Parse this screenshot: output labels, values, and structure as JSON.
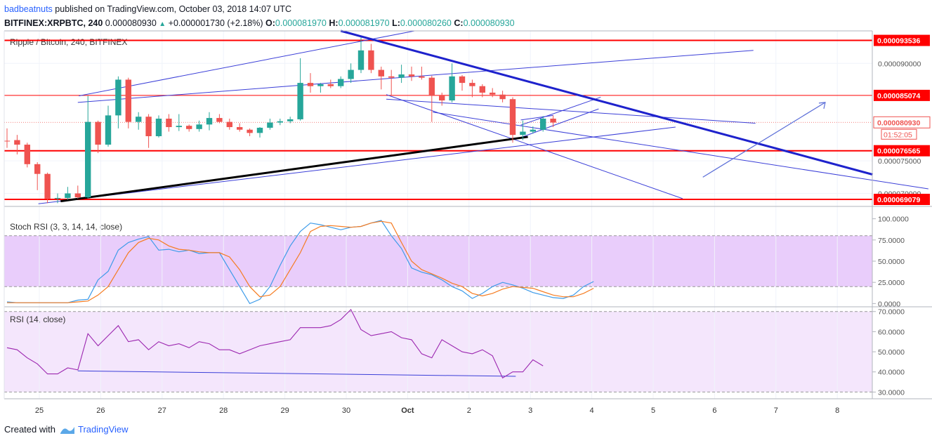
{
  "header": {
    "author": "badbeatnuts",
    "published_text": "published on TradingView.com, October 03, 2018 14:07 UTC",
    "symbol": "BITFINEX:XRPBTC, 240",
    "last": "0.000080930",
    "change": "+0.000001730 (+2.18%)",
    "o_label": "O:",
    "o": "0.000081970",
    "h_label": "H:",
    "h": "0.000081970",
    "l_label": "L:",
    "l": "0.000080260",
    "c_label": "C:",
    "c": "0.000080930"
  },
  "colors": {
    "up": "#26a69a",
    "down": "#ef5350",
    "hline": "#ff0000",
    "trend_blue": "#1e22cc",
    "channel": "#3b3fd8",
    "stoch_k": "#3d9be9",
    "stoch_d": "#f57c22",
    "rsi": "#9c27b0",
    "band": "#e1bee7"
  },
  "chart_data": [
    {
      "type": "candlestick",
      "title": "Ripple / Bitcoin, 240, BITFINEX",
      "x_tick_labels": [
        "25",
        "26",
        "27",
        "28",
        "29",
        "30",
        "Oct",
        "2",
        "3",
        "4",
        "5",
        "6",
        "7",
        "8"
      ],
      "y_tick_labels": [
        "0.000090000",
        "0.000075000",
        "0.000070000"
      ],
      "y_range": [
        6.8e-05,
        9.5e-05
      ],
      "candles": [
        {
          "o": 7.81e-05,
          "h": 8e-05,
          "l": 7.7e-05,
          "c": 7.8e-05
        },
        {
          "o": 7.82e-05,
          "h": 7.9e-05,
          "l": 7.6e-05,
          "c": 7.75e-05
        },
        {
          "o": 7.75e-05,
          "h": 7.78e-05,
          "l": 7.4e-05,
          "c": 7.45e-05
        },
        {
          "o": 7.45e-05,
          "h": 7.48e-05,
          "l": 7.05e-05,
          "c": 7.3e-05
        },
        {
          "o": 7.3e-05,
          "h": 7.32e-05,
          "l": 6.85e-05,
          "c": 6.92e-05
        },
        {
          "o": 6.92e-05,
          "h": 7e-05,
          "l": 6.85e-05,
          "c": 6.93e-05
        },
        {
          "o": 6.93e-05,
          "h": 7.1e-05,
          "l": 6.9e-05,
          "c": 7e-05
        },
        {
          "o": 7e-05,
          "h": 7.12e-05,
          "l": 6.92e-05,
          "c": 6.94e-05
        },
        {
          "o": 6.94e-05,
          "h": 8.5e-05,
          "l": 6.92e-05,
          "c": 8.1e-05
        },
        {
          "o": 8.1e-05,
          "h": 8.12e-05,
          "l": 7.62e-05,
          "c": 7.75e-05
        },
        {
          "o": 7.75e-05,
          "h": 8.35e-05,
          "l": 7.72e-05,
          "c": 8.2e-05
        },
        {
          "o": 8.2e-05,
          "h": 8.8e-05,
          "l": 8e-05,
          "c": 8.75e-05
        },
        {
          "o": 8.75e-05,
          "h": 8.78e-05,
          "l": 8e-05,
          "c": 8.1e-05
        },
        {
          "o": 8.1e-05,
          "h": 8.25e-05,
          "l": 7.98e-05,
          "c": 8.18e-05
        },
        {
          "o": 8.18e-05,
          "h": 8.22e-05,
          "l": 7.7e-05,
          "c": 7.88e-05
        },
        {
          "o": 7.88e-05,
          "h": 8.2e-05,
          "l": 7.86e-05,
          "c": 8.15e-05
        },
        {
          "o": 8.15e-05,
          "h": 8.22e-05,
          "l": 7.95e-05,
          "c": 8.02e-05
        },
        {
          "o": 8.02e-05,
          "h": 8.22e-05,
          "l": 7.96e-05,
          "c": 8.04e-05
        },
        {
          "o": 8.04e-05,
          "h": 8.06e-05,
          "l": 7.95e-05,
          "c": 7.99e-05
        },
        {
          "o": 7.99e-05,
          "h": 8.12e-05,
          "l": 7.95e-05,
          "c": 8.06e-05
        },
        {
          "o": 8.06e-05,
          "h": 8.25e-05,
          "l": 7.97e-05,
          "c": 8.16e-05
        },
        {
          "o": 8.16e-05,
          "h": 8.22e-05,
          "l": 8.08e-05,
          "c": 8.1e-05
        },
        {
          "o": 8.1e-05,
          "h": 8.15e-05,
          "l": 7.98e-05,
          "c": 8.02e-05
        },
        {
          "o": 8.02e-05,
          "h": 8.08e-05,
          "l": 7.95e-05,
          "c": 7.98e-05
        },
        {
          "o": 7.98e-05,
          "h": 8e-05,
          "l": 7.88e-05,
          "c": 7.93e-05
        },
        {
          "o": 7.93e-05,
          "h": 8.02e-05,
          "l": 7.86e-05,
          "c": 8.01e-05
        },
        {
          "o": 8.01e-05,
          "h": 8.15e-05,
          "l": 7.98e-05,
          "c": 8.09e-05
        },
        {
          "o": 8.09e-05,
          "h": 8.15e-05,
          "l": 8.05e-05,
          "c": 8.11e-05
        },
        {
          "o": 8.11e-05,
          "h": 8.18e-05,
          "l": 8.08e-05,
          "c": 8.14e-05
        },
        {
          "o": 8.14e-05,
          "h": 9.08e-05,
          "l": 8.12e-05,
          "c": 8.7e-05
        },
        {
          "o": 8.7e-05,
          "h": 8.85e-05,
          "l": 8.55e-05,
          "c": 8.65e-05
        },
        {
          "o": 8.65e-05,
          "h": 8.7e-05,
          "l": 8.55e-05,
          "c": 8.68e-05
        },
        {
          "o": 8.68e-05,
          "h": 8.75e-05,
          "l": 8.62e-05,
          "c": 8.65e-05
        },
        {
          "o": 8.65e-05,
          "h": 8.8e-05,
          "l": 8.62e-05,
          "c": 8.76e-05
        },
        {
          "o": 8.76e-05,
          "h": 9e-05,
          "l": 8.7e-05,
          "c": 8.9e-05
        },
        {
          "o": 8.9e-05,
          "h": 9.4e-05,
          "l": 8.85e-05,
          "c": 9.2e-05
        },
        {
          "o": 9.2e-05,
          "h": 9.3e-05,
          "l": 8.85e-05,
          "c": 8.9e-05
        },
        {
          "o": 8.9e-05,
          "h": 8.95e-05,
          "l": 8.6e-05,
          "c": 8.8e-05
        },
        {
          "o": 8.8e-05,
          "h": 8.9e-05,
          "l": 8.5e-05,
          "c": 8.78e-05
        },
        {
          "o": 8.78e-05,
          "h": 8.98e-05,
          "l": 8.7e-05,
          "c": 8.83e-05
        },
        {
          "o": 8.83e-05,
          "h": 8.95e-05,
          "l": 8.73e-05,
          "c": 8.8e-05
        },
        {
          "o": 8.8e-05,
          "h": 8.95e-05,
          "l": 8.75e-05,
          "c": 8.78e-05
        },
        {
          "o": 8.78e-05,
          "h": 8.81e-05,
          "l": 8.1e-05,
          "c": 8.5e-05
        },
        {
          "o": 8.5e-05,
          "h": 8.55e-05,
          "l": 8.35e-05,
          "c": 8.43e-05
        },
        {
          "o": 8.43e-05,
          "h": 9e-05,
          "l": 8.4e-05,
          "c": 8.8e-05
        },
        {
          "o": 8.8e-05,
          "h": 8.82e-05,
          "l": 8.58e-05,
          "c": 8.7e-05
        },
        {
          "o": 8.7e-05,
          "h": 8.75e-05,
          "l": 8.48e-05,
          "c": 8.65e-05
        },
        {
          "o": 8.65e-05,
          "h": 8.68e-05,
          "l": 8.48e-05,
          "c": 8.55e-05
        },
        {
          "o": 8.55e-05,
          "h": 8.62e-05,
          "l": 8.48e-05,
          "c": 8.52e-05
        },
        {
          "o": 8.52e-05,
          "h": 8.58e-05,
          "l": 8.4e-05,
          "c": 8.45e-05
        },
        {
          "o": 8.45e-05,
          "h": 8.48e-05,
          "l": 7.78e-05,
          "c": 7.9e-05
        },
        {
          "o": 7.9e-05,
          "h": 8.12e-05,
          "l": 7.82e-05,
          "c": 7.95e-05
        },
        {
          "o": 7.95e-05,
          "h": 8.03e-05,
          "l": 7.92e-05,
          "c": 7.98e-05
        },
        {
          "o": 7.98e-05,
          "h": 8.19e-05,
          "l": 7.95e-05,
          "c": 8.15e-05
        },
        {
          "o": 8.15e-05,
          "h": 8.2e-05,
          "l": 8.02e-05,
          "c": 8.09e-05
        }
      ],
      "horizontal_levels": [
        {
          "label": "0.000093536",
          "value": 9.3536e-05
        },
        {
          "label": "0.000085074",
          "value": 8.5074e-05
        },
        {
          "label": "0.000080930",
          "value": 8.093e-05
        },
        {
          "label": "0.000076565",
          "value": 7.6565e-05
        },
        {
          "label": "0.000069079",
          "value": 6.9079e-05
        }
      ],
      "countdown": "01:52:05"
    },
    {
      "type": "line",
      "title": "Stoch RSI (3, 3, 14, 14, close)",
      "y_tick_labels": [
        "100.0000",
        "75.0000",
        "50.0000",
        "25.0000",
        "0.0000"
      ],
      "y_range": [
        -3,
        103
      ],
      "band": [
        20,
        80
      ],
      "series": [
        {
          "values": [
            2,
            1,
            1,
            1,
            1,
            1,
            1,
            4,
            5,
            28,
            38,
            63,
            72,
            76,
            79,
            63,
            64,
            61,
            63,
            59,
            60,
            60,
            40,
            20,
            0,
            5,
            20,
            45,
            68,
            85,
            95,
            93,
            90,
            87,
            90,
            91,
            95,
            98,
            80,
            65,
            42,
            37,
            34,
            28,
            20,
            15,
            6,
            12,
            20,
            25,
            22,
            18,
            13,
            10,
            7,
            6,
            10,
            20,
            26
          ]
        },
        {
          "values": [
            1,
            1,
            1,
            1,
            1,
            1,
            1,
            2,
            3,
            10,
            20,
            40,
            60,
            72,
            77,
            75,
            68,
            64,
            63,
            61,
            60,
            60,
            55,
            40,
            20,
            8,
            10,
            20,
            40,
            60,
            85,
            91,
            92,
            91,
            90,
            91,
            95,
            97,
            95,
            72,
            50,
            40,
            35,
            30,
            24,
            20,
            12,
            9,
            12,
            17,
            20,
            19,
            18,
            14,
            10,
            8,
            8,
            12,
            18
          ]
        }
      ]
    },
    {
      "type": "line",
      "title": "RSI (14, close)",
      "y_tick_labels": [
        "70.0000",
        "60.0000",
        "50.0000",
        "40.0000",
        "30.0000"
      ],
      "y_range": [
        27,
        72
      ],
      "band": [
        30,
        70
      ],
      "series": [
        {
          "values": [
            52,
            51,
            47,
            44,
            39,
            39,
            42,
            41,
            59,
            53,
            58,
            63,
            55,
            56,
            51,
            55,
            53,
            54,
            52,
            55,
            54,
            51,
            51,
            49,
            51,
            53,
            54,
            55,
            56,
            62,
            62,
            62,
            63,
            66,
            71,
            61,
            58,
            59,
            60,
            57,
            56,
            49,
            47,
            56,
            53,
            50,
            49,
            51,
            48,
            37,
            40,
            40,
            46,
            43
          ]
        }
      ]
    }
  ],
  "footer": {
    "created_with": "Created with",
    "brand": "TradingView"
  }
}
